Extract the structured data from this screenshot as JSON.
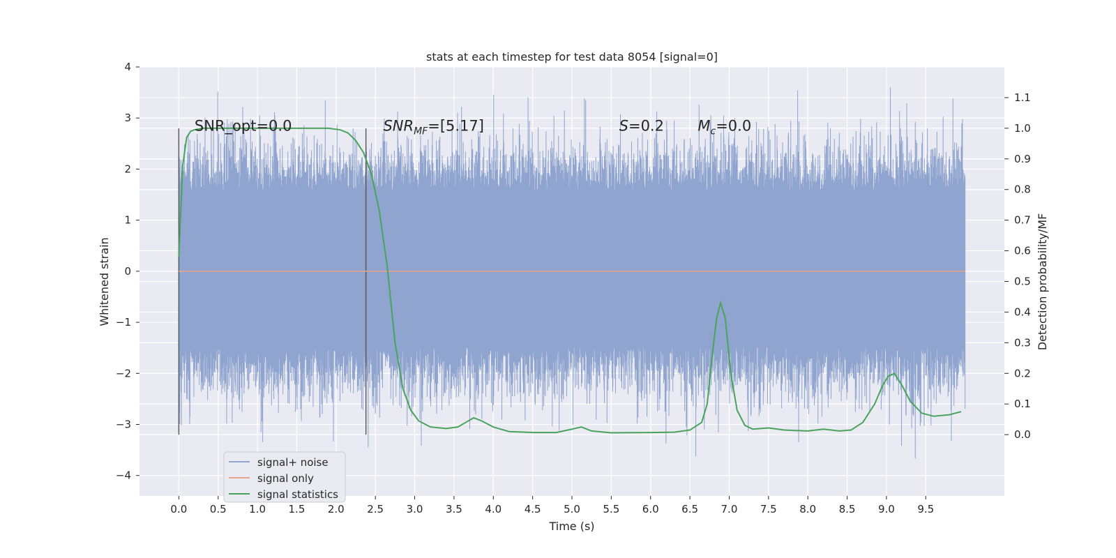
{
  "chart_data": {
    "type": "line",
    "title": "stats at each timestep for test data 8054 [signal=0]",
    "xlabel": "Time (s)",
    "ylabel": "Whitened strain",
    "y2label": "Detection probability/MF",
    "xlim": [
      -0.5,
      10.5
    ],
    "ylim": [
      -4.4,
      4.0
    ],
    "y2lim": [
      -0.2,
      1.2
    ],
    "x_ticks": [
      "0.0",
      "0.5",
      "1.0",
      "1.5",
      "2.0",
      "2.5",
      "3.0",
      "3.5",
      "4.0",
      "4.5",
      "5.0",
      "5.5",
      "6.0",
      "6.5",
      "7.0",
      "7.5",
      "8.0",
      "8.5",
      "9.0",
      "9.5"
    ],
    "y_ticks": [
      "4",
      "3",
      "2",
      "1",
      "0",
      "−1",
      "−2",
      "−3",
      "−4"
    ],
    "y2_ticks": [
      "1.1",
      "1.0",
      "0.9",
      "0.8",
      "0.7",
      "0.6",
      "0.5",
      "0.4",
      "0.3",
      "0.2",
      "0.1",
      "0.0"
    ],
    "grid": true,
    "legend_position": "lower-left",
    "annotations": [
      {
        "id": "snr_opt",
        "text": "SNR_opt=0.0",
        "x": 0.2,
        "y": 2.75
      },
      {
        "id": "snr_mf",
        "text": "=[5.17]",
        "x": 2.6,
        "y": 2.75,
        "math": "SNR",
        "sub": "MF"
      },
      {
        "id": "s",
        "text": "=0.2",
        "x": 5.6,
        "y": 2.75,
        "math": "S"
      },
      {
        "id": "mc",
        "text": "=0.0",
        "x": 6.6,
        "y": 2.75,
        "math": "M",
        "sub": "c"
      }
    ],
    "markers": [
      {
        "x": 0.0,
        "y_min": -3.2,
        "y_max": 2.8
      },
      {
        "x": 2.38,
        "y_min": -3.2,
        "y_max": 2.8
      }
    ],
    "series": [
      {
        "name": "signal+ noise",
        "axis": "left",
        "color": "#8fa4ce",
        "x_start": 0.0,
        "x_end": 10.0,
        "min_envelope": -2.9,
        "max_envelope": 3.6,
        "typical_range": [
          -2.0,
          2.2
        ]
      },
      {
        "name": "signal only",
        "axis": "left",
        "color": "#e9a489",
        "x": [
          0.0,
          10.0
        ],
        "y": [
          0.0,
          0.0
        ]
      },
      {
        "name": "signal statistics",
        "axis": "right",
        "color": "#4aa35c",
        "x": [
          0.0,
          0.05,
          0.1,
          0.15,
          0.2,
          0.3,
          0.5,
          1.0,
          1.5,
          1.9,
          2.05,
          2.15,
          2.25,
          2.35,
          2.45,
          2.55,
          2.65,
          2.75,
          2.85,
          2.95,
          3.05,
          3.2,
          3.4,
          3.55,
          3.65,
          3.75,
          3.85,
          4.0,
          4.2,
          4.5,
          4.8,
          5.0,
          5.12,
          5.25,
          5.5,
          6.0,
          6.3,
          6.5,
          6.65,
          6.72,
          6.78,
          6.84,
          6.89,
          6.95,
          7.02,
          7.1,
          7.2,
          7.3,
          7.5,
          7.7,
          8.0,
          8.2,
          8.4,
          8.55,
          8.7,
          8.85,
          8.95,
          9.02,
          9.1,
          9.2,
          9.3,
          9.45,
          9.6,
          9.8,
          9.95
        ],
        "y": [
          0.58,
          0.88,
          0.97,
          0.99,
          0.995,
          1.0,
          1.0,
          1.0,
          1.0,
          1.0,
          0.995,
          0.985,
          0.96,
          0.92,
          0.85,
          0.73,
          0.55,
          0.3,
          0.15,
          0.08,
          0.045,
          0.025,
          0.02,
          0.025,
          0.04,
          0.055,
          0.045,
          0.025,
          0.01,
          0.007,
          0.007,
          0.018,
          0.025,
          0.012,
          0.006,
          0.007,
          0.008,
          0.015,
          0.04,
          0.1,
          0.25,
          0.38,
          0.43,
          0.38,
          0.2,
          0.08,
          0.03,
          0.018,
          0.022,
          0.015,
          0.012,
          0.018,
          0.012,
          0.015,
          0.04,
          0.1,
          0.16,
          0.19,
          0.2,
          0.16,
          0.11,
          0.07,
          0.06,
          0.065,
          0.075
        ]
      }
    ]
  }
}
